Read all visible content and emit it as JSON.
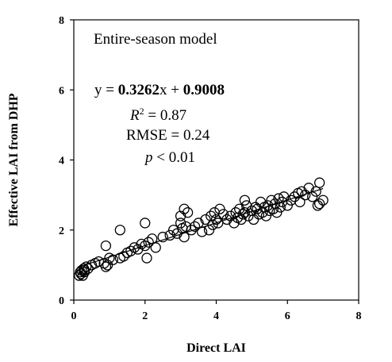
{
  "chart_data": {
    "type": "scatter",
    "title": "Entire-season model",
    "xlabel": "Direct LAI",
    "ylabel": "Effective LAI from DHP",
    "xlim": [
      0,
      8
    ],
    "ylim": [
      0,
      8
    ],
    "xticks": [
      0,
      2,
      4,
      6,
      8
    ],
    "yticks": [
      0,
      2,
      4,
      6,
      8
    ],
    "grid": false,
    "annotations": {
      "equation_prefix": "y = ",
      "slope": "0.3262",
      "equation_mid": "x + ",
      "intercept": "0.9008",
      "r2_label": "R",
      "r2_sup": "2",
      "r2_value": " = 0.87",
      "rmse": "RMSE = 0.24",
      "p_label": "p",
      "p_value": " < 0.01"
    },
    "fit": {
      "slope": 0.3262,
      "intercept": 0.9008,
      "x_range": [
        0.15,
        7.0
      ]
    },
    "series": [
      {
        "x": [
          0.15,
          0.18,
          0.2,
          0.22,
          0.25,
          0.28,
          0.3,
          0.35,
          0.4,
          0.5,
          0.6,
          0.7,
          0.85,
          0.9,
          0.95,
          1.0,
          1.1,
          1.3,
          1.4,
          1.5,
          1.6,
          1.7,
          1.8,
          1.9,
          2.0,
          2.05,
          2.1,
          2.2,
          2.3,
          2.5,
          2.7,
          2.8,
          2.9,
          3.0,
          3.05,
          3.1,
          3.15,
          3.2,
          3.3,
          3.4,
          3.5,
          3.6,
          3.7,
          3.8,
          3.85,
          3.9,
          3.95,
          4.0,
          4.05,
          4.1,
          4.2,
          4.3,
          4.4,
          4.5,
          4.55,
          4.6,
          4.65,
          4.7,
          4.75,
          4.8,
          4.85,
          4.9,
          5.0,
          5.05,
          5.1,
          5.15,
          5.2,
          5.25,
          5.3,
          5.35,
          5.4,
          5.45,
          5.5,
          5.55,
          5.6,
          5.65,
          5.7,
          5.75,
          5.8,
          5.85,
          5.9,
          6.0,
          6.1,
          6.2,
          6.3,
          6.35,
          6.4,
          6.5,
          6.6,
          6.7,
          6.8,
          6.85,
          6.9,
          7.0,
          0.3,
          0.9,
          1.3,
          2.0,
          3.0,
          3.1,
          4.8,
          6.9
        ],
        "y": [
          0.7,
          0.8,
          0.75,
          0.85,
          0.7,
          0.9,
          0.8,
          0.95,
          0.9,
          1.0,
          1.05,
          1.1,
          1.05,
          0.95,
          1.0,
          1.2,
          1.15,
          1.2,
          1.25,
          1.35,
          1.4,
          1.5,
          1.45,
          1.6,
          1.55,
          1.2,
          1.65,
          1.75,
          1.5,
          1.8,
          1.85,
          2.0,
          1.9,
          2.2,
          2.05,
          1.8,
          2.1,
          2.5,
          2.0,
          2.1,
          2.2,
          1.95,
          2.3,
          2.0,
          2.4,
          2.15,
          2.5,
          2.3,
          2.2,
          2.6,
          2.45,
          2.3,
          2.4,
          2.2,
          2.5,
          2.35,
          2.6,
          2.3,
          2.45,
          2.5,
          2.7,
          2.4,
          2.55,
          2.3,
          2.65,
          2.6,
          2.45,
          2.8,
          2.5,
          2.65,
          2.4,
          2.7,
          2.55,
          2.85,
          2.6,
          2.75,
          2.5,
          2.9,
          2.65,
          2.8,
          2.95,
          2.7,
          2.85,
          2.95,
          3.05,
          2.8,
          3.1,
          3.0,
          3.2,
          2.95,
          3.1,
          2.7,
          3.35,
          2.85,
          0.85,
          1.55,
          2.0,
          2.2,
          2.4,
          2.6,
          2.85,
          2.75
        ]
      }
    ]
  }
}
